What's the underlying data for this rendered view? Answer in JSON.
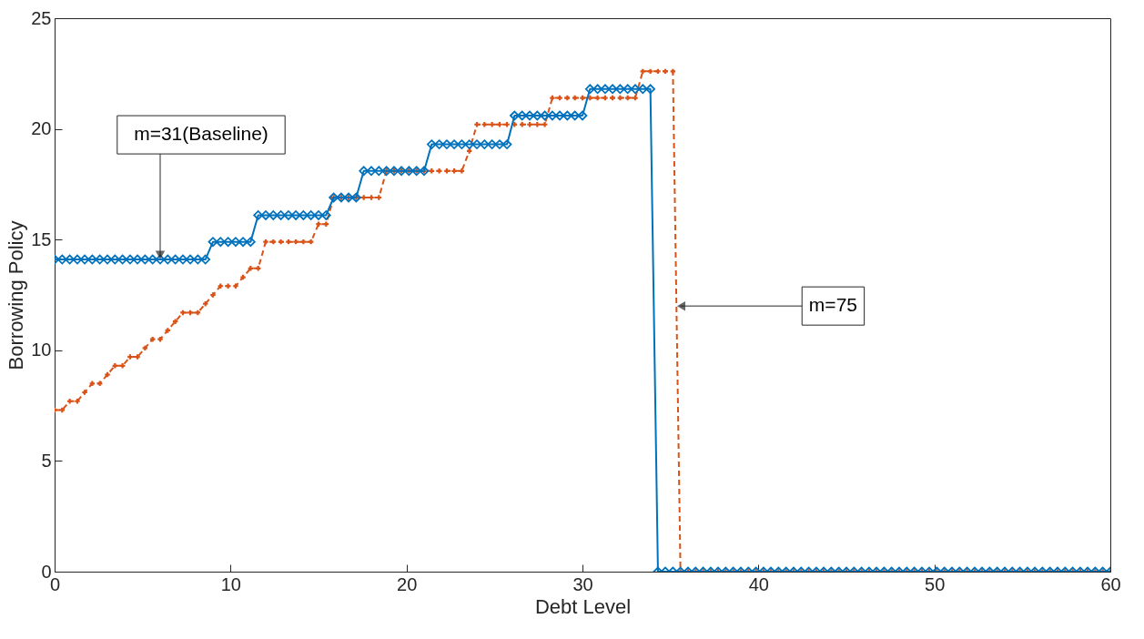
{
  "chart_data": {
    "type": "line",
    "xlabel": "Debt Level",
    "ylabel": "Borrowing Policy",
    "xlim": [
      0,
      60
    ],
    "ylim": [
      0,
      25
    ],
    "xticks": [
      0,
      10,
      20,
      30,
      40,
      50,
      60
    ],
    "yticks": [
      0,
      5,
      10,
      15,
      20,
      25
    ],
    "x": [
      0,
      0.43,
      0.86,
      1.29,
      1.71,
      2.14,
      2.57,
      3,
      3.43,
      3.86,
      4.29,
      4.71,
      5.14,
      5.57,
      6,
      6.43,
      6.86,
      7.29,
      7.71,
      8.14,
      8.57,
      9,
      9.43,
      9.86,
      10.29,
      10.71,
      11.14,
      11.57,
      12,
      12.43,
      12.86,
      13.29,
      13.71,
      14.14,
      14.57,
      15,
      15.43,
      15.86,
      16.29,
      16.71,
      17.14,
      17.57,
      18,
      18.43,
      18.86,
      19.29,
      19.71,
      20.14,
      20.57,
      21,
      21.43,
      21.86,
      22.29,
      22.71,
      23.14,
      23.57,
      24,
      24.43,
      24.86,
      25.29,
      25.71,
      26.14,
      26.57,
      27,
      27.43,
      27.86,
      28.29,
      28.71,
      29.14,
      29.57,
      30,
      30.43,
      30.86,
      31.29,
      31.71,
      32.14,
      32.57,
      33,
      33.43,
      33.86,
      34.29,
      34.71,
      35.14,
      35.57,
      36,
      36.43,
      36.86,
      37.29,
      37.71,
      38.14,
      38.57,
      39,
      39.43,
      39.86,
      40.29,
      40.71,
      41.14,
      41.57,
      42,
      42.43,
      42.86,
      43.29,
      43.71,
      44.14,
      44.57,
      45,
      45.43,
      45.86,
      46.29,
      46.71,
      47.14,
      47.57,
      48,
      48.43,
      48.86,
      49.29,
      49.71,
      50.14,
      50.57,
      51,
      51.43,
      51.86,
      52.29,
      52.71,
      53.14,
      53.57,
      54,
      54.43,
      54.86,
      55.29,
      55.71,
      56.14,
      56.57,
      57,
      57.43,
      57.86,
      58.29,
      58.71,
      59.14,
      59.57,
      60
    ],
    "series": [
      {
        "color": "#0072bd",
        "marker": "diamond",
        "line_style": "solid",
        "values": [
          14.1,
          14.1,
          14.1,
          14.1,
          14.1,
          14.1,
          14.1,
          14.1,
          14.1,
          14.1,
          14.1,
          14.1,
          14.1,
          14.1,
          14.1,
          14.1,
          14.1,
          14.1,
          14.1,
          14.1,
          14.1,
          14.9,
          14.9,
          14.9,
          14.9,
          14.9,
          14.9,
          16.1,
          16.1,
          16.1,
          16.1,
          16.1,
          16.1,
          16.1,
          16.1,
          16.1,
          16.1,
          16.9,
          16.9,
          16.9,
          16.9,
          18.1,
          18.1,
          18.1,
          18.1,
          18.1,
          18.1,
          18.1,
          18.1,
          18.1,
          19.3,
          19.3,
          19.3,
          19.3,
          19.3,
          19.3,
          19.3,
          19.3,
          19.3,
          19.3,
          19.3,
          20.6,
          20.6,
          20.6,
          20.6,
          20.6,
          20.6,
          20.6,
          20.6,
          20.6,
          20.6,
          21.8,
          21.8,
          21.8,
          21.8,
          21.8,
          21.8,
          21.8,
          21.8,
          21.8,
          0,
          0,
          0,
          0,
          0,
          0,
          0,
          0,
          0,
          0,
          0,
          0,
          0,
          0,
          0,
          0,
          0,
          0,
          0,
          0,
          0,
          0,
          0,
          0,
          0,
          0,
          0,
          0,
          0,
          0,
          0,
          0,
          0,
          0,
          0,
          0,
          0,
          0,
          0,
          0,
          0,
          0,
          0,
          0,
          0,
          0,
          0,
          0,
          0,
          0,
          0,
          0,
          0,
          0,
          0,
          0,
          0,
          0,
          0,
          0,
          0
        ]
      },
      {
        "color": "#d95319",
        "marker": "cross",
        "line_style": "dashed",
        "values": [
          7.3,
          7.3,
          7.7,
          7.7,
          8.1,
          8.5,
          8.5,
          8.9,
          9.3,
          9.3,
          9.7,
          9.7,
          10.1,
          10.5,
          10.5,
          10.9,
          11.3,
          11.7,
          11.7,
          11.7,
          12.1,
          12.5,
          12.9,
          12.9,
          12.9,
          13.3,
          13.7,
          13.7,
          14.9,
          14.9,
          14.9,
          14.9,
          14.9,
          14.9,
          14.9,
          15.7,
          15.7,
          16.9,
          16.9,
          16.9,
          16.9,
          16.9,
          16.9,
          16.9,
          18.1,
          18.1,
          18.1,
          18.1,
          18.1,
          18.1,
          18.1,
          18.1,
          18.1,
          18.1,
          18.1,
          19.0,
          20.2,
          20.2,
          20.2,
          20.2,
          20.2,
          20.2,
          20.2,
          20.2,
          20.2,
          20.2,
          21.4,
          21.4,
          21.4,
          21.4,
          21.4,
          21.4,
          21.4,
          21.4,
          21.4,
          21.4,
          21.4,
          21.4,
          22.6,
          22.6,
          22.6,
          22.6,
          22.6,
          0,
          0,
          0,
          0,
          0,
          0,
          0,
          0,
          0,
          0,
          0,
          0,
          0,
          0,
          0,
          0,
          0,
          0,
          0,
          0,
          0,
          0,
          0,
          0,
          0,
          0,
          0,
          0,
          0,
          0,
          0,
          0,
          0,
          0,
          0,
          0,
          0,
          0,
          0,
          0,
          0,
          0,
          0,
          0,
          0,
          0,
          0,
          0,
          0,
          0,
          0,
          0,
          0,
          0,
          0,
          0,
          0,
          0
        ]
      }
    ],
    "annotations": [
      {
        "text": "m=31(Baseline)",
        "x": 6,
        "y": 14.1
      },
      {
        "text": "m=75",
        "x": 35.35,
        "y": 12
      }
    ]
  }
}
